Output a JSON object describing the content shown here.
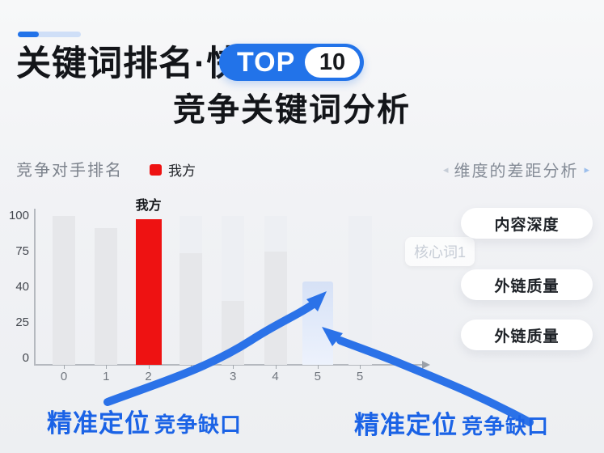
{
  "colors": {
    "accent": "#2273e9",
    "accent_light": "#cfdff7",
    "red": "#ee1212",
    "callout_blue": "#1b63e6",
    "arrow_blue": "#2b72e8",
    "highlight_bar": "#dbe5f7",
    "gray_bar": "#e6e7ea"
  },
  "header": {
    "title": "关键词排名·快速",
    "badge": {
      "text": "TOP",
      "number": "10"
    },
    "subtitle": "竞争关键词分析"
  },
  "chart_data": {
    "type": "bar",
    "title": "竞争对手排名",
    "legend": {
      "label": "我方",
      "color": "#ee1212"
    },
    "categories": [
      "0",
      "1",
      "2",
      "",
      "3",
      "4",
      "5",
      "5"
    ],
    "values": [
      100,
      92,
      98,
      75,
      43,
      76,
      56,
      100
    ],
    "bar_styles": [
      "gray",
      "gray",
      "red",
      "gray",
      "gray",
      "gray",
      "highlight",
      "ghost"
    ],
    "ghost_backdrops": [
      3,
      4,
      5
    ],
    "bar_label": {
      "index": 2,
      "text": "我方"
    },
    "y_ticks": [
      "100",
      "75",
      "40",
      "25",
      "0"
    ],
    "ylim": [
      0,
      100
    ],
    "xlabel": "",
    "ylabel": "",
    "grid": false,
    "legend_position": "top"
  },
  "right_panel": {
    "header": "维度的差距分析",
    "chevron_left": "◂",
    "chevron_right": "▸",
    "floating_tag": "核心词1",
    "items": [
      "内容深度",
      "外链质量",
      "外链质量"
    ]
  },
  "callouts": {
    "left": {
      "strong": "精准定位",
      "normal": "竞争缺口"
    },
    "right": {
      "strong": "精准定位",
      "normal": "竞争缺口"
    }
  }
}
